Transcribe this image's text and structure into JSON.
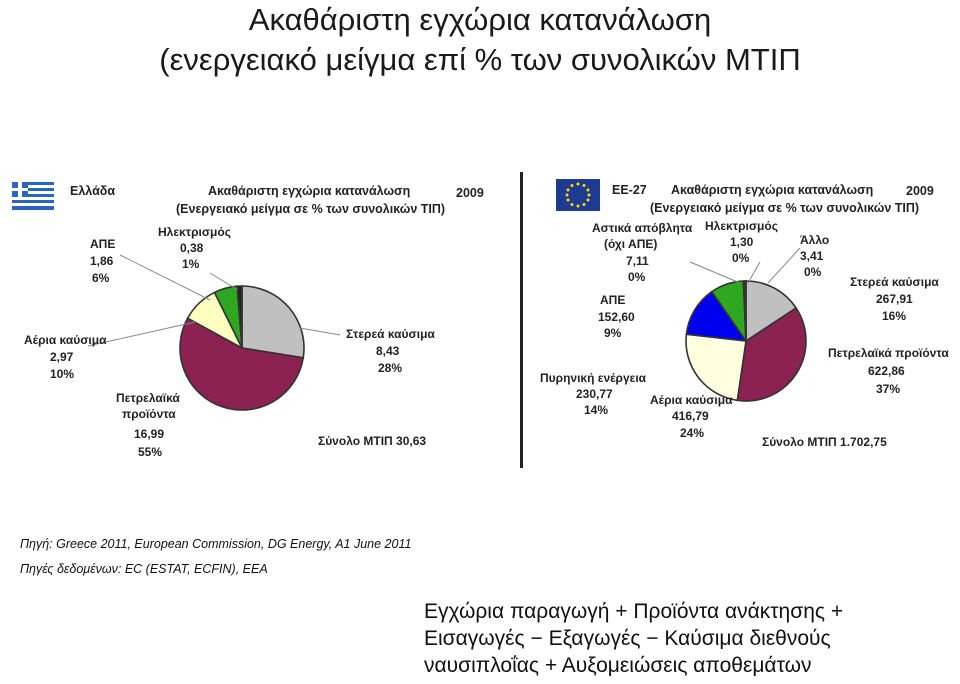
{
  "title": {
    "line1": "Ακαθάριστη εγχώρια κατανάλωση",
    "line2": "(ενεργειακό μείγμα επί % των συνολικών ΜΤΙΠ"
  },
  "colors": {
    "solid": "#c0c0c0",
    "oil": "#8b2252",
    "gas": "#ffffc0",
    "nuclear": "#0000ff",
    "res": "#2ea61e",
    "electricity": "#f2e68c",
    "urban": "#8fb3e0",
    "other": "#9a9a9a"
  },
  "chart_data": [
    {
      "type": "pie",
      "region": "Ελλάδα",
      "title": "Ακαθάριστη εγχώρια κατανάλωση",
      "subtitle": "(Ενεργειακό μείγμα σε % των συνολικών ΤΙΠ)",
      "year": "2009",
      "total_label": "Σύνολο ΜΤΙΠ 30,63",
      "slices": [
        {
          "name": "Στερεά καύσιμα",
          "value": 8.43,
          "value_text": "8,43",
          "percent": "28%",
          "color": "#c0c0c0"
        },
        {
          "name": "Πετρελαϊκά προϊόντα",
          "value": 16.99,
          "value_text": "16,99",
          "percent": "55%",
          "color": "#8b2252"
        },
        {
          "name": "Αέρια καύσιμα",
          "value": 2.97,
          "value_text": "2,97",
          "percent": "10%",
          "color": "#ffffc0"
        },
        {
          "name": "ΑΠΕ",
          "value": 1.86,
          "value_text": "1,86",
          "percent": "6%",
          "color": "#2ea61e"
        },
        {
          "name": "Ηλεκτρισμός",
          "value": 0.38,
          "value_text": "0,38",
          "percent": "1%",
          "color": "#222222"
        }
      ]
    },
    {
      "type": "pie",
      "region": "ΕΕ-27",
      "title": "Ακαθάριστη εγχώρια κατανάλωση",
      "subtitle": "(Ενεργειακό μείγμα σε % των συνολικών ΤΙΠ)",
      "year": "2009",
      "total_label": "Σύνολο ΜΤΙΠ 1.702,75",
      "slices": [
        {
          "name": "Στερεά καύσιμα",
          "value": 267.91,
          "value_text": "267,91",
          "percent": "16%",
          "color": "#c0c0c0"
        },
        {
          "name": "Πετρελαϊκά προϊόντα",
          "value": 622.86,
          "value_text": "622,86",
          "percent": "37%",
          "color": "#8b2252"
        },
        {
          "name": "Αέρια καύσιμα",
          "value": 416.79,
          "value_text": "416,79",
          "percent": "24%",
          "color": "#ffffe0"
        },
        {
          "name": "Πυρηνική ενέργεια",
          "value": 230.77,
          "value_text": "230,77",
          "percent": "14%",
          "color": "#0000ee"
        },
        {
          "name": "ΑΠΕ",
          "value": 152.6,
          "value_text": "152,60",
          "percent": "9%",
          "color": "#2ea61e"
        },
        {
          "name": "Αστικά απόβλητα (όχι ΑΠΕ)",
          "value": 7.11,
          "value_text": "7,11",
          "percent": "0%",
          "color": "#222222"
        },
        {
          "name": "Ηλεκτρισμός",
          "value": 1.3,
          "value_text": "1,30",
          "percent": "0%",
          "color": "#555555"
        },
        {
          "name": "Άλλο",
          "value": 3.41,
          "value_text": "3,41",
          "percent": "0%",
          "color": "#777777"
        }
      ]
    }
  ],
  "labels": {
    "gr_title": "Ακαθάριστη εγχώρια κατανάλωση",
    "gr_subtitle": "(Ενεργειακό μείγμα σε % των συνολικών ΤΙΠ)",
    "gr_region": "Ελλάδα",
    "gr_year": "2009",
    "gr_total": "Σύνολο ΜΤΙΠ 30,63",
    "eu_title": "Ακαθάριστη εγχώρια κατανάλωση",
    "eu_subtitle": "(Ενεργειακό μείγμα σε % των συνολικών ΤΙΠ)",
    "eu_region": "ΕΕ-27",
    "eu_year": "2009",
    "eu_total": "Σύνολο ΜΤΙΠ 1.702,75",
    "gr_elec": [
      "Ηλεκτρισμός",
      "0,38",
      "1%"
    ],
    "gr_res": [
      "ΑΠΕ",
      "1,86",
      "6%"
    ],
    "gr_gas": [
      "Αέρια καύσιμα",
      "2,97",
      "10%"
    ],
    "gr_oil": [
      "Πετρελαϊκά",
      "προϊόντα",
      "16,99",
      "55%"
    ],
    "gr_solid": [
      "Στερεά καύσιμα",
      "8,43",
      "28%"
    ],
    "eu_urban": [
      "Αστικά απόβλητα",
      "(όχι ΑΠΕ)",
      "7,11",
      "0%"
    ],
    "eu_elec": [
      "Ηλεκτρισμός",
      "1,30",
      "0%"
    ],
    "eu_other": [
      "Άλλο",
      "3,41",
      "0%"
    ],
    "eu_solid": [
      "Στερεά καύσιμα",
      "267,91",
      "16%"
    ],
    "eu_res": [
      "ΑΠΕ",
      "152,60",
      "9%"
    ],
    "eu_oil": [
      "Πετρελαϊκά προϊόντα",
      "622,86",
      "37%"
    ],
    "eu_nuclear": [
      "Πυρηνική ενέργεια",
      "230,77",
      "14%"
    ],
    "eu_gas": [
      "Αέρια καύσιμα",
      "416,79",
      "24%"
    ]
  },
  "sources": {
    "line1": "Πηγή: Greece 2011, European Commission, DG Energy, A1 June 2011",
    "line2": "Πηγές δεδομένων: EC (ESTAT, ECFIN), EEA"
  },
  "note": {
    "line1": "Εγχώρια παραγωγή + Προϊόντα ανάκτησης +",
    "line2": "Εισαγωγές − Εξαγωγές − Καύσιμα διεθνούς",
    "line3": "ναυσιπλοΐας + Αυξομειώσεις αποθεμάτων"
  }
}
